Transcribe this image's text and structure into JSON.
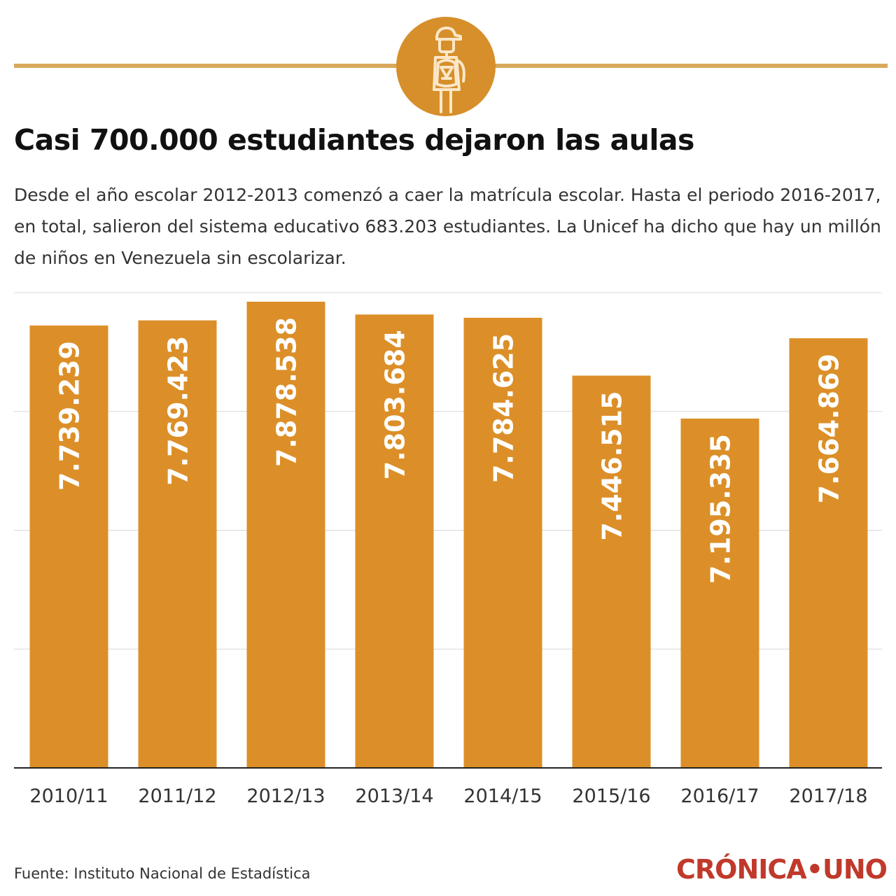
{
  "header": {
    "icon": "student-with-backpack-icon",
    "accent_color": "#d68f2a",
    "title": "Casi 700.000 estudiantes dejaron las aulas",
    "subtitle": "Desde el año escolar 2012-2013 comenzó a caer la matrícula escolar. Hasta el periodo 2016-2017,  en total, salieron del sistema educativo 683.203 estudiantes. La Unicef ha dicho que  hay un millón de niños en Venezuela sin escolarizar."
  },
  "chart_data": {
    "type": "bar",
    "categories": [
      "2010/11",
      "2011/12",
      "2012/13",
      "2013/14",
      "2014/15",
      "2015/16",
      "2016/17",
      "2017/18"
    ],
    "values": [
      7739239,
      7769423,
      7878538,
      7803684,
      7784625,
      7446515,
      7195335,
      7664869
    ],
    "value_labels": [
      "7.739.239",
      "7.769.423",
      "7.878.538",
      "7.803.684",
      "7.784.625",
      "7.446.515",
      "7.195.335",
      "7.664.869"
    ],
    "bar_color": "#dc8f28",
    "label_color": "#ffffff",
    "grid": true,
    "xlabel": "",
    "ylabel": ""
  },
  "footer": {
    "source": "Fuente: Instituto Nacional de Estadística",
    "brand": "CRÓNICA•UNO",
    "brand_color": "#c0392b"
  }
}
